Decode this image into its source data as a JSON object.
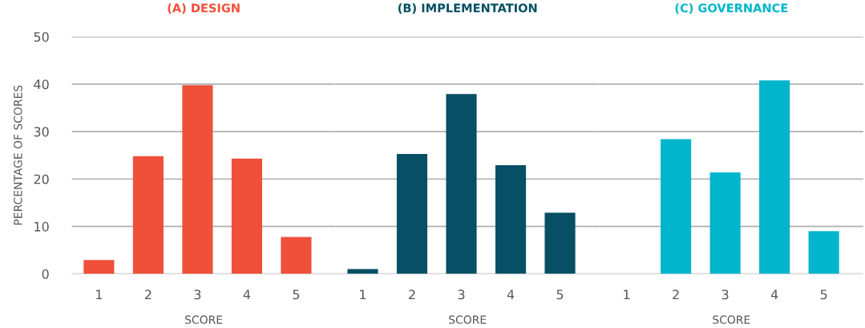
{
  "chart_data": [
    {
      "type": "bar",
      "title": "(A) DESIGN",
      "xlabel": "SCORE",
      "ylabel": "PERCENTAGE OF SCORES",
      "categories": [
        "1",
        "2",
        "3",
        "4",
        "5"
      ],
      "values": [
        2.9,
        24.8,
        39.8,
        24.3,
        7.8
      ],
      "color": "#f04f3a",
      "ylim": [
        0,
        50
      ],
      "yticks": [
        0,
        10,
        20,
        30,
        40,
        50
      ],
      "grid": "y"
    },
    {
      "type": "bar",
      "title": "(B) IMPLEMENTATION",
      "xlabel": "SCORE",
      "categories": [
        "1",
        "2",
        "3",
        "4",
        "5"
      ],
      "values": [
        1.0,
        25.3,
        37.9,
        22.9,
        12.9
      ],
      "color": "#064f64",
      "ylim": [
        0,
        50
      ],
      "yticks": [
        0,
        10,
        20,
        30,
        40,
        50
      ],
      "grid": "y",
      "tick_labels": "x"
    },
    {
      "type": "bar",
      "title": "(C) GOVERNANCE",
      "xlabel": "SCORE",
      "categories": [
        "1",
        "2",
        "3",
        "4",
        "5"
      ],
      "values": [
        0,
        28.4,
        21.4,
        40.8,
        9.0
      ],
      "color": "#00b5cc",
      "ylim": [
        0,
        50
      ],
      "yticks": [
        0,
        10,
        20,
        30,
        40,
        50
      ],
      "grid": "y",
      "tick_labels": "x"
    }
  ]
}
